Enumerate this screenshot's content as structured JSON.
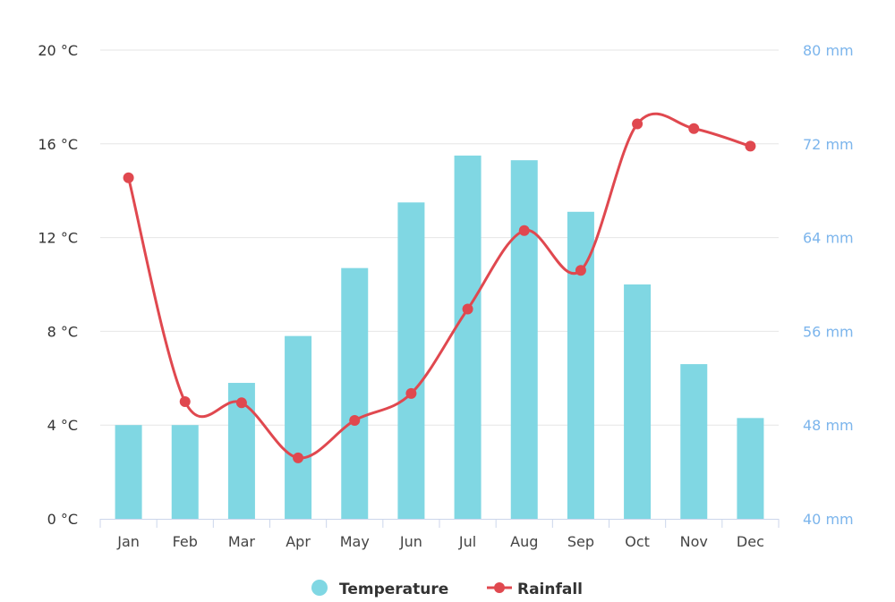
{
  "chart_data": {
    "type": "bar",
    "categories": [
      "Jan",
      "Feb",
      "Mar",
      "Apr",
      "May",
      "Jun",
      "Jul",
      "Aug",
      "Sep",
      "Oct",
      "Nov",
      "Dec"
    ],
    "series": [
      {
        "name": "Temperature",
        "type": "bar",
        "axis": "left",
        "color": "#80d7e3",
        "values": [
          4.0,
          4.0,
          5.8,
          7.8,
          10.7,
          13.5,
          15.5,
          15.3,
          13.1,
          10.0,
          6.6,
          4.3
        ]
      },
      {
        "name": "Rainfall",
        "type": "line",
        "axis": "right",
        "color": "#e0484f",
        "values": [
          69.1,
          50.0,
          49.9,
          45.2,
          48.4,
          50.7,
          57.9,
          64.6,
          61.2,
          73.7,
          73.3,
          71.8
        ]
      }
    ],
    "y_left": {
      "min": 0,
      "max": 20,
      "ticks": [
        0,
        4,
        8,
        12,
        16,
        20
      ],
      "tick_labels": [
        "0 °C",
        "4 °C",
        "8 °C",
        "12 °C",
        "16 °C",
        "20 °C"
      ]
    },
    "y_right": {
      "min": 40,
      "max": 80,
      "ticks": [
        40,
        48,
        56,
        64,
        72,
        80
      ],
      "tick_labels": [
        "40 mm",
        "48 mm",
        "56 mm",
        "64 mm",
        "72 mm",
        "80 mm"
      ]
    },
    "grid": true,
    "legend_position": "bottom-center",
    "colors": {
      "grid": "#e6e6e6",
      "axis_line": "#ccd6eb",
      "right_axis_text": "#7cb5ec"
    }
  }
}
